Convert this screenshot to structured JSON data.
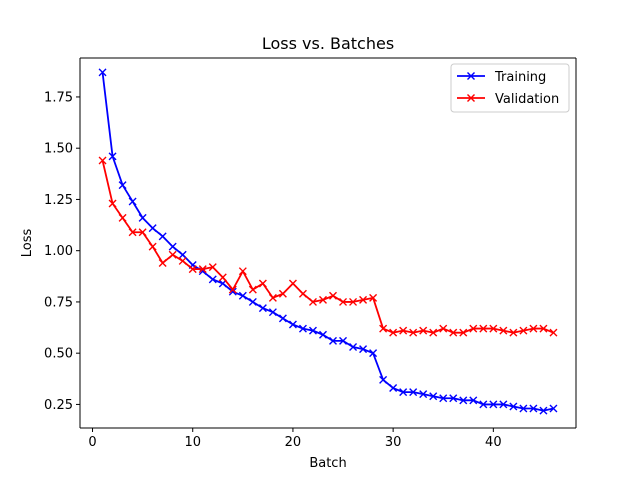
{
  "chart_data": {
    "type": "line",
    "title": "Loss vs. Batches",
    "xlabel": "Batch",
    "ylabel": "Loss",
    "xlim": [
      -1.25,
      48.25
    ],
    "ylim": [
      0.135,
      1.94
    ],
    "xticks": [
      0,
      10,
      20,
      30,
      40
    ],
    "yticks": [
      0.25,
      0.5,
      0.75,
      1.0,
      1.25,
      1.5,
      1.75
    ],
    "grid": false,
    "legend": "upper right",
    "marker": "x",
    "x": [
      1,
      2,
      3,
      4,
      5,
      6,
      7,
      8,
      9,
      10,
      11,
      12,
      13,
      14,
      15,
      16,
      17,
      18,
      19,
      20,
      21,
      22,
      23,
      24,
      25,
      26,
      27,
      28,
      29,
      30,
      31,
      32,
      33,
      34,
      35,
      36,
      37,
      38,
      39,
      40,
      41,
      42,
      43,
      44,
      45,
      46
    ],
    "series": [
      {
        "name": "Training",
        "color": "#0000ff",
        "values": [
          1.87,
          1.46,
          1.32,
          1.24,
          1.16,
          1.11,
          1.07,
          1.02,
          0.98,
          0.93,
          0.9,
          0.86,
          0.84,
          0.8,
          0.78,
          0.75,
          0.72,
          0.7,
          0.67,
          0.64,
          0.62,
          0.61,
          0.59,
          0.56,
          0.56,
          0.53,
          0.52,
          0.5,
          0.37,
          0.33,
          0.31,
          0.31,
          0.3,
          0.29,
          0.28,
          0.28,
          0.27,
          0.27,
          0.25,
          0.25,
          0.25,
          0.24,
          0.23,
          0.23,
          0.22,
          0.23
        ]
      },
      {
        "name": "Validation",
        "color": "#ff0000",
        "values": [
          1.44,
          1.23,
          1.16,
          1.09,
          1.09,
          1.02,
          0.94,
          0.98,
          0.95,
          0.91,
          0.91,
          0.92,
          0.87,
          0.81,
          0.9,
          0.81,
          0.84,
          0.77,
          0.79,
          0.84,
          0.79,
          0.75,
          0.76,
          0.78,
          0.75,
          0.75,
          0.76,
          0.77,
          0.62,
          0.6,
          0.61,
          0.6,
          0.61,
          0.6,
          0.62,
          0.6,
          0.6,
          0.62,
          0.62,
          0.62,
          0.61,
          0.6,
          0.61,
          0.62,
          0.62,
          0.6
        ]
      }
    ]
  }
}
